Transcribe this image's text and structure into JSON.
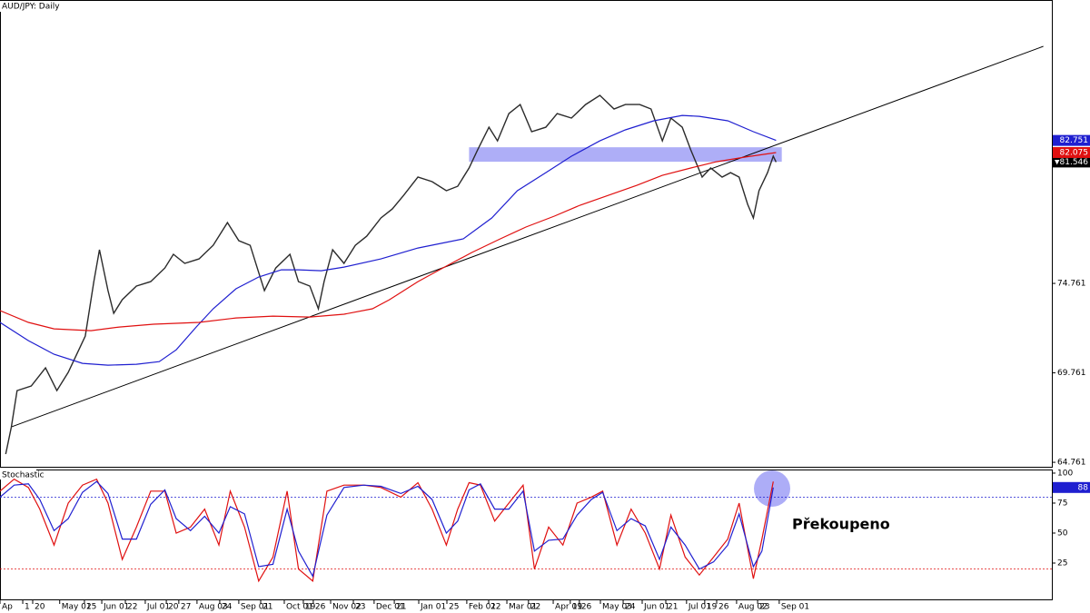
{
  "chart_data": [
    {
      "type": "line",
      "title": "AUD/JPY: Daily",
      "xlim": [
        0,
        370
      ],
      "ylim": [
        64.46,
        90.6
      ],
      "yticks": [
        64.761,
        69.761,
        74.761
      ],
      "xticks": [
        {
          "value": 0,
          "label": "Ap"
        },
        {
          "value": 8,
          "label": "1"
        },
        {
          "value": 11.5,
          "label": "20"
        },
        {
          "value": 21,
          "label": "May 01"
        },
        {
          "value": 29.7,
          "label": "25"
        },
        {
          "value": 35.8,
          "label": "Jun 01"
        },
        {
          "value": 44.1,
          "label": "22"
        },
        {
          "value": 51.1,
          "label": "Jul 01"
        },
        {
          "value": 58.5,
          "label": "20"
        },
        {
          "value": 62.9,
          "label": "27"
        },
        {
          "value": 69.3,
          "label": "Aug 03"
        },
        {
          "value": 77.3,
          "label": "24"
        },
        {
          "value": 84,
          "label": "Sep 01"
        },
        {
          "value": 91.7,
          "label": "21"
        },
        {
          "value": 100,
          "label": "Oct 01"
        },
        {
          "value": 106.7,
          "label": "19"
        },
        {
          "value": 110.2,
          "label": "26"
        },
        {
          "value": 116.3,
          "label": "Nov 02"
        },
        {
          "value": 124.3,
          "label": "23"
        },
        {
          "value": 131.6,
          "label": "Dec 01"
        },
        {
          "value": 138.7,
          "label": "21"
        },
        {
          "value": 147.3,
          "label": "Jan 01"
        },
        {
          "value": 157.2,
          "label": "25"
        },
        {
          "value": 164.2,
          "label": "Feb 01"
        },
        {
          "value": 171.9,
          "label": "22"
        },
        {
          "value": 178.3,
          "label": "Mar 01"
        },
        {
          "value": 185.9,
          "label": "22"
        },
        {
          "value": 194.6,
          "label": "Apr 01"
        },
        {
          "value": 200.6,
          "label": "19"
        },
        {
          "value": 203.8,
          "label": "26"
        },
        {
          "value": 211.2,
          "label": "May 03"
        },
        {
          "value": 219.2,
          "label": "24"
        },
        {
          "value": 225.9,
          "label": "Jun 01"
        },
        {
          "value": 234.2,
          "label": "21"
        },
        {
          "value": 241.5,
          "label": "Jul 01"
        },
        {
          "value": 247.9,
          "label": "19"
        },
        {
          "value": 252.1,
          "label": "26"
        },
        {
          "value": 259.1,
          "label": "Aug 02"
        },
        {
          "value": 266.5,
          "label": "23"
        },
        {
          "value": 274.1,
          "label": "Sep 01"
        }
      ],
      "series": [
        {
          "color": "#2b2b2b",
          "x": [
            2,
            4,
            6,
            11,
            16,
            20,
            24,
            27,
            30,
            33,
            35,
            38,
            40,
            43,
            48,
            53,
            58,
            61,
            65,
            70,
            75,
            80,
            84,
            88,
            91,
            93,
            97,
            102,
            105,
            109,
            112,
            114,
            117,
            121,
            125,
            129,
            134,
            138,
            142,
            147,
            152,
            157,
            161,
            165,
            168,
            172,
            175,
            179,
            183,
            187,
            192,
            196,
            201,
            206,
            211,
            216,
            220,
            225,
            229,
            233,
            236,
            240,
            243,
            247,
            250,
            254,
            257,
            260,
            263,
            265,
            267,
            270,
            272,
            273
          ],
          "values": [
            65.22,
            66.74,
            68.77,
            69.03,
            70.04,
            68.77,
            69.79,
            70.8,
            71.82,
            74.86,
            76.64,
            74.36,
            73.09,
            73.85,
            74.61,
            74.86,
            75.62,
            76.39,
            75.88,
            76.13,
            76.89,
            78.16,
            77.15,
            76.89,
            75.37,
            74.36,
            75.62,
            76.39,
            74.86,
            74.61,
            73.34,
            74.86,
            76.64,
            75.88,
            76.89,
            77.4,
            78.42,
            78.92,
            79.68,
            80.7,
            80.45,
            79.94,
            80.19,
            81.21,
            82.22,
            83.49,
            82.73,
            84.25,
            84.76,
            83.24,
            83.49,
            84.25,
            84.0,
            84.76,
            85.27,
            84.51,
            84.76,
            84.76,
            84.51,
            82.73,
            84.0,
            83.49,
            82.22,
            80.7,
            81.21,
            80.7,
            80.95,
            80.7,
            79.18,
            78.42,
            79.94,
            80.95,
            81.87,
            81.546
          ]
        },
        {
          "color": "#1f1fd0",
          "x": [
            0,
            10,
            19,
            29,
            38,
            48,
            56,
            62,
            69,
            75,
            83,
            91,
            99,
            105,
            113,
            121,
            134,
            147,
            163,
            173,
            182,
            192,
            201,
            211,
            220,
            230,
            240,
            246,
            256,
            265,
            273
          ],
          "values": [
            72.58,
            71.56,
            70.8,
            70.29,
            70.19,
            70.24,
            70.39,
            71.05,
            72.32,
            73.34,
            74.46,
            75.12,
            75.52,
            75.52,
            75.47,
            75.67,
            76.13,
            76.74,
            77.25,
            78.42,
            79.94,
            80.95,
            81.87,
            82.73,
            83.34,
            83.85,
            84.15,
            84.1,
            83.85,
            83.24,
            82.751
          ]
        },
        {
          "color": "#e01010",
          "x": [
            0,
            10,
            19,
            32,
            42,
            54,
            70,
            83,
            96,
            109,
            121,
            131,
            137,
            147,
            157,
            166,
            176,
            185,
            195,
            204,
            214,
            224,
            233,
            243,
            252,
            262,
            273
          ],
          "values": [
            73.24,
            72.58,
            72.22,
            72.12,
            72.32,
            72.48,
            72.58,
            72.83,
            72.93,
            72.88,
            73.04,
            73.34,
            73.85,
            74.86,
            75.73,
            76.49,
            77.25,
            77.91,
            78.52,
            79.13,
            79.68,
            80.24,
            80.8,
            81.21,
            81.56,
            81.82,
            82.075
          ]
        }
      ],
      "trendline": {
        "x": [
          4,
          367
        ],
        "values": [
          66.74,
          88.01
        ],
        "color": "#000000"
      },
      "zone": {
        "x": [
          165,
          275
        ],
        "values": [
          81.56,
          82.37
        ],
        "color": "#9a9af5"
      }
    },
    {
      "type": "line",
      "title": "Stochastic",
      "xlim": [
        0,
        370
      ],
      "ylim": [
        -5.3,
        103
      ],
      "yticks": [
        25,
        50,
        75,
        100
      ],
      "levels": [
        20,
        80
      ],
      "annotation": "Překoupeno",
      "series": [
        {
          "color": "#e01010",
          "x": [
            0,
            5,
            10,
            14,
            19,
            24,
            29,
            34,
            38,
            43,
            48,
            53,
            58,
            62,
            67,
            72,
            77,
            81,
            86,
            91,
            96,
            101,
            105,
            110,
            115,
            121,
            128,
            134,
            141,
            147,
            152,
            157,
            161,
            165,
            169,
            174,
            179,
            184,
            188,
            193,
            198,
            203,
            208,
            212,
            217,
            222,
            227,
            232,
            236,
            241,
            246,
            251,
            256,
            260,
            265,
            268,
            272
          ],
          "values": [
            85,
            95,
            88,
            70,
            40,
            75,
            90,
            95,
            75,
            28,
            55,
            85,
            85,
            50,
            55,
            70,
            40,
            85,
            55,
            10,
            30,
            85,
            20,
            10,
            85,
            90,
            90,
            88,
            80,
            92,
            70,
            40,
            70,
            92,
            90,
            60,
            75,
            90,
            20,
            55,
            40,
            75,
            80,
            85,
            40,
            70,
            50,
            20,
            65,
            30,
            15,
            30,
            45,
            75,
            12,
            45,
            92.91
          ]
        },
        {
          "color": "#1f1fd0",
          "x": [
            0,
            5,
            10,
            14,
            19,
            24,
            29,
            34,
            38,
            43,
            48,
            53,
            58,
            62,
            67,
            72,
            77,
            81,
            86,
            91,
            96,
            101,
            105,
            110,
            115,
            121,
            128,
            134,
            141,
            147,
            152,
            157,
            161,
            165,
            169,
            174,
            179,
            184,
            188,
            193,
            198,
            203,
            208,
            212,
            217,
            222,
            227,
            232,
            236,
            241,
            246,
            251,
            256,
            260,
            265,
            268,
            272
          ],
          "values": [
            80,
            90,
            91,
            78,
            52,
            62,
            84,
            93,
            83,
            45,
            45,
            74,
            86,
            62,
            52,
            64,
            50,
            72,
            66,
            22,
            24,
            70,
            35,
            14,
            65,
            88,
            90,
            89,
            83,
            89,
            78,
            50,
            60,
            86,
            91,
            70,
            70,
            85,
            35,
            44,
            45,
            65,
            78,
            84,
            52,
            62,
            56,
            28,
            55,
            40,
            20,
            26,
            40,
            66,
            22,
            35,
            88
          ]
        }
      ]
    }
  ]
}
